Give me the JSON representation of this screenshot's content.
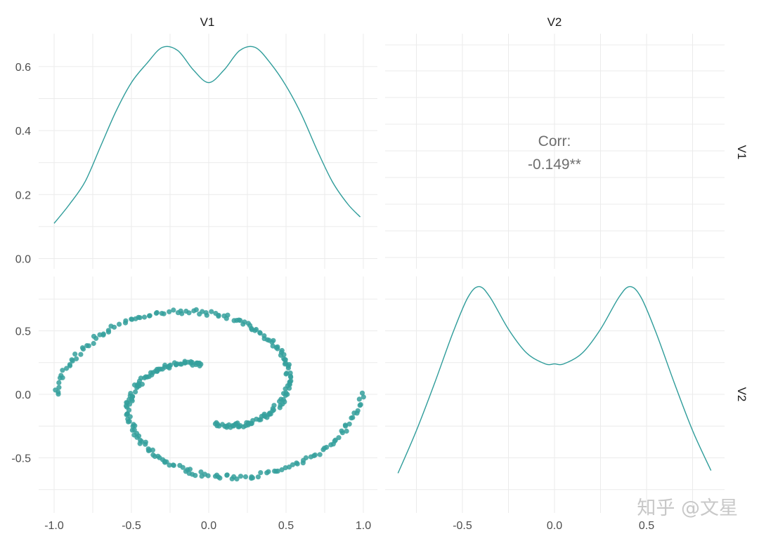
{
  "chart_data": {
    "type": "scatter",
    "layout": "pairs-matrix",
    "variables": [
      "V1",
      "V2"
    ],
    "accent_color": "#2E9C9A",
    "point_color": "#35A09C",
    "grid": true,
    "x_ticks": {
      "V1": [
        -1.0,
        -0.5,
        0.0,
        0.5,
        1.0
      ],
      "V1_labels": [
        "-1.0",
        "-0.5",
        "0.0",
        "0.5",
        "1.0"
      ],
      "V2": [
        -0.5,
        0.0,
        0.5
      ],
      "V2_labels": [
        "-0.5",
        "0.0",
        "0.5"
      ]
    },
    "y_ticks": {
      "density": [
        0.0,
        0.2,
        0.4,
        0.6
      ],
      "density_labels": [
        "0.0",
        "0.2",
        "0.4",
        "0.6"
      ],
      "V2": [
        -0.5,
        0.0,
        0.5
      ],
      "V2_labels": [
        "-0.5",
        "0.0",
        "0.5"
      ]
    },
    "ranges": {
      "V1": [
        -1.0,
        1.0
      ],
      "V2": [
        -0.85,
        0.85
      ],
      "density": [
        0.0,
        0.67
      ]
    },
    "density_V1": {
      "x": [
        -1.0,
        -0.9,
        -0.8,
        -0.7,
        -0.6,
        -0.5,
        -0.4,
        -0.3,
        -0.2,
        -0.1,
        0.0,
        0.1,
        0.2,
        0.3,
        0.4,
        0.5,
        0.6,
        0.7,
        0.8,
        0.9,
        0.98
      ],
      "y": [
        0.11,
        0.17,
        0.24,
        0.35,
        0.46,
        0.55,
        0.61,
        0.66,
        0.65,
        0.59,
        0.55,
        0.59,
        0.65,
        0.66,
        0.61,
        0.54,
        0.45,
        0.34,
        0.24,
        0.17,
        0.13
      ]
    },
    "density_V2": {
      "x": [
        -0.85,
        -0.75,
        -0.65,
        -0.55,
        -0.47,
        -0.41,
        -0.35,
        -0.25,
        -0.15,
        -0.05,
        0.0,
        0.05,
        0.15,
        0.25,
        0.35,
        0.41,
        0.47,
        0.55,
        0.65,
        0.75,
        0.85
      ],
      "y": [
        0.12,
        0.28,
        0.46,
        0.65,
        0.78,
        0.82,
        0.78,
        0.66,
        0.57,
        0.53,
        0.53,
        0.53,
        0.57,
        0.66,
        0.78,
        0.82,
        0.78,
        0.65,
        0.46,
        0.28,
        0.13
      ]
    },
    "correlation": {
      "label": "Corr:",
      "value": "-0.149**"
    },
    "spiral_points_note_omitted": false,
    "scatter_V1_V2": {
      "spirals": [
        {
          "t_start": 0.55,
          "t_end": 2.0,
          "n": 170,
          "sign": 1
        },
        {
          "t_start": 0.55,
          "t_end": 2.0,
          "n": 170,
          "sign": -1
        }
      ]
    }
  },
  "strips": {
    "top": [
      "V1",
      "V2"
    ],
    "right": [
      "V1",
      "V2"
    ]
  },
  "watermark": "知乎 @文星"
}
